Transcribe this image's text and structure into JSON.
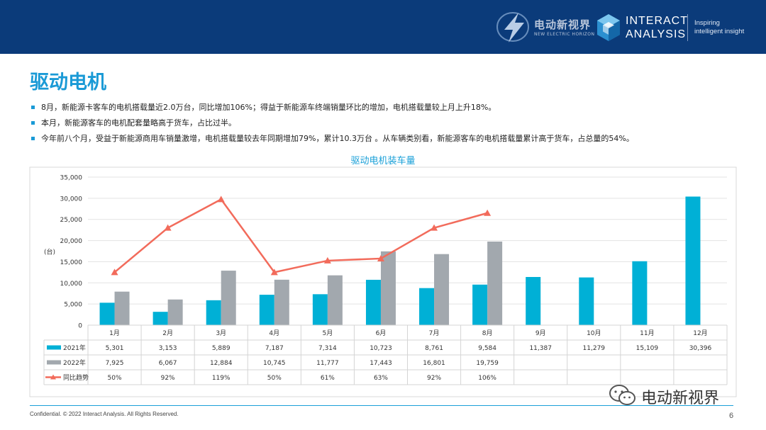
{
  "header": {
    "logo1_name": "电动新视界",
    "logo1_sub": "NEW ELECTRIC HORIZON",
    "brand_line1": "INTERACT",
    "brand_line2": "ANALYSIS",
    "tagline1": "Inspiring",
    "tagline2": "intelligent insight",
    "bg_color": "#0b3b7a",
    "logo1_icon": "lightning-bolt-icon",
    "logo2_icon": "cube-logo-icon"
  },
  "page_title": "驱动电机",
  "bullets": [
    "8月，新能源卡客车的电机搭载量近2.0万台，同比增加106%；得益于新能源车终端销量环比的增加，电机搭载量较上月上升18%。",
    "本月，新能源客车的电机配套量略高于货车，占比过半。",
    "今年前八个月，受益于新能源商用车销量激增，电机搭载量较去年同期增加79%，累计10.3万台 。从车辆类别看，新能源客车的电机搭载量累计高于货车，占总量的54%。"
  ],
  "chart_data": {
    "type": "bar",
    "title": "驱动电机装车量",
    "ylabel": "(台)",
    "ylim": [
      0,
      35000
    ],
    "yticks": [
      "0",
      "5,000",
      "10,000",
      "15,000",
      "20,000",
      "25,000",
      "30,000",
      "35,000"
    ],
    "yrightlim": [
      0,
      1.4
    ],
    "categories": [
      "1月",
      "2月",
      "3月",
      "4月",
      "5月",
      "6月",
      "7月",
      "8月",
      "9月",
      "10月",
      "11月",
      "12月"
    ],
    "series": [
      {
        "name": "2021年",
        "kind": "bar",
        "color": "#00b0d6",
        "values": [
          5301,
          3153,
          5889,
          7187,
          7314,
          10723,
          8761,
          9584,
          11387,
          11279,
          15109,
          30396
        ],
        "labels": [
          "5,301",
          "3,153",
          "5,889",
          "7,187",
          "7,314",
          "10,723",
          "8,761",
          "9,584",
          "11,387",
          "11,279",
          "15,109",
          "30,396"
        ]
      },
      {
        "name": "2022年",
        "kind": "bar",
        "color": "#a2a8ae",
        "values": [
          7925,
          6067,
          12884,
          10745,
          11777,
          17443,
          16801,
          19759,
          null,
          null,
          null,
          null
        ],
        "labels": [
          "7,925",
          "6,067",
          "12,884",
          "10,745",
          "11,777",
          "17,443",
          "16,801",
          "19,759",
          "",
          "",
          "",
          ""
        ]
      },
      {
        "name": "同比趋势",
        "kind": "line",
        "color": "#f26b5b",
        "values": [
          0.5,
          0.92,
          1.19,
          0.5,
          0.61,
          0.63,
          0.92,
          1.06,
          null,
          null,
          null,
          null
        ],
        "labels": [
          "50%",
          "92%",
          "119%",
          "50%",
          "61%",
          "63%",
          "92%",
          "106%",
          "",
          "",
          "",
          ""
        ]
      }
    ],
    "grid": true,
    "legend": "data-table-left"
  },
  "footer": {
    "confidential": "Confidential. © 2022 Interact Analysis. All Rights Reserved.",
    "page": "6"
  },
  "watermark": {
    "text": "电动新视界",
    "icon": "wechat-icon"
  }
}
